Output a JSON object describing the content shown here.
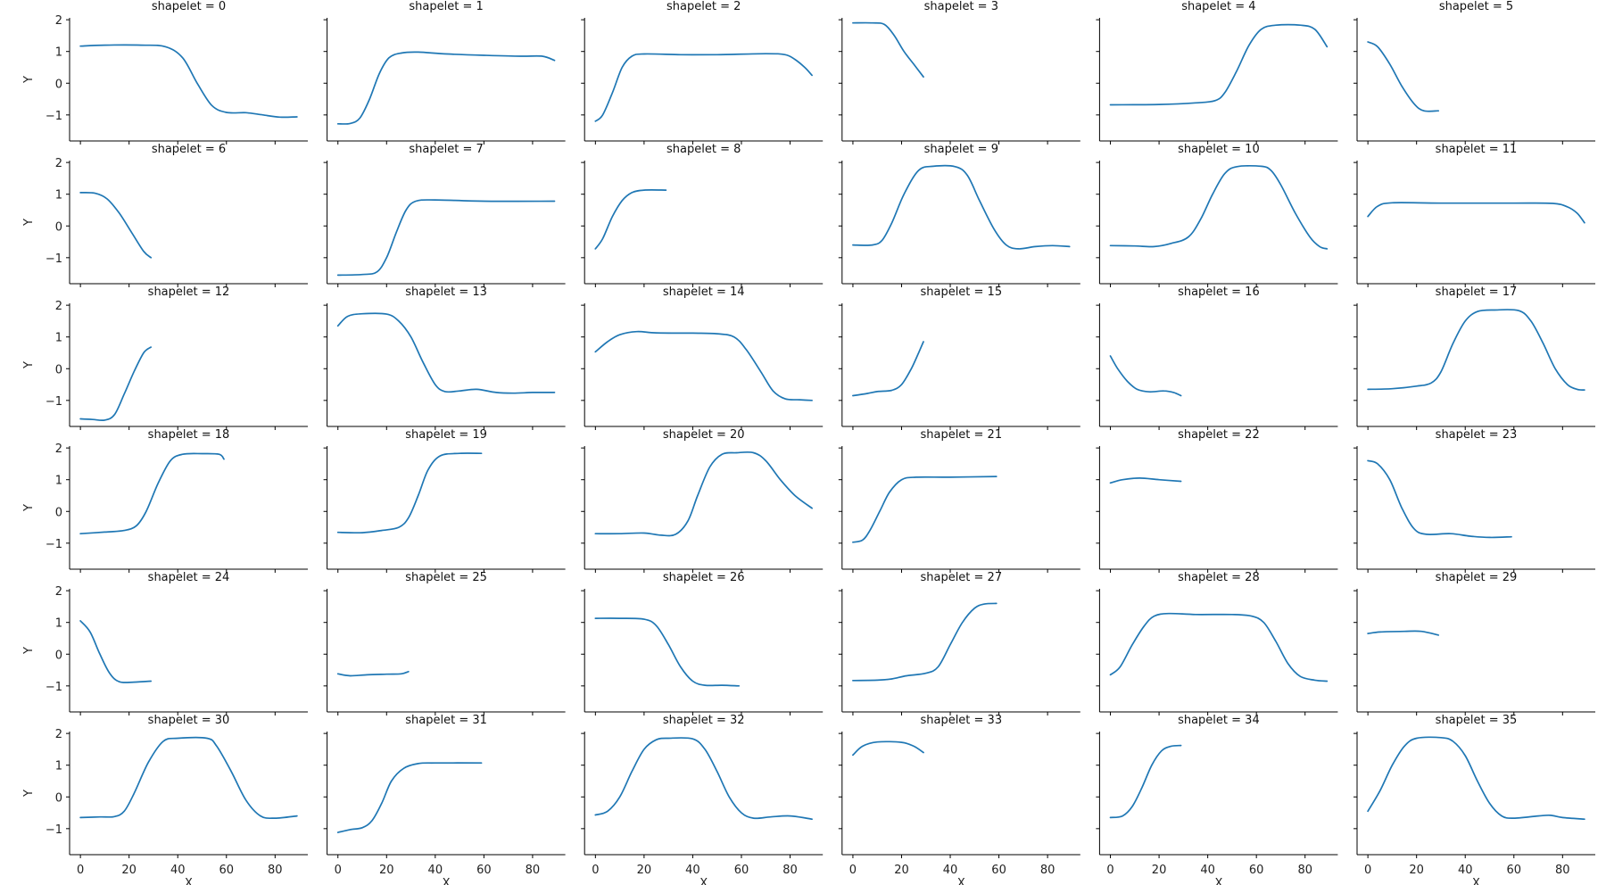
{
  "chart_data": {
    "type": "line",
    "layout": "facet grid, 6 columns x 6 rows, shared axes",
    "xlabel": "X",
    "ylabel": "Y",
    "xlim": [
      -4.45,
      93.45
    ],
    "ylim": [
      -1.82,
      2.06
    ],
    "xticks": [
      0,
      20,
      40,
      60,
      80
    ],
    "xtick_labels": [
      "0",
      "20",
      "40",
      "60",
      "80"
    ],
    "yticks": [
      -1,
      0,
      1,
      2
    ],
    "ytick_labels": [
      "−1",
      "0",
      "1",
      "2"
    ],
    "grid": false,
    "line_color": "#1f77b4",
    "panels": [
      {
        "title": "shapelet = 0",
        "x": [
          0,
          10,
          25,
          35,
          42,
          48,
          54,
          60,
          68,
          75,
          82,
          89
        ],
        "y": [
          1.17,
          1.2,
          1.2,
          1.15,
          0.8,
          0,
          -0.7,
          -0.92,
          -0.93,
          -1.0,
          -1.07,
          -1.06
        ]
      },
      {
        "title": "shapelet = 1",
        "x": [
          0,
          5,
          9,
          13,
          17,
          21,
          26,
          33,
          45,
          60,
          75,
          84,
          89
        ],
        "y": [
          -1.28,
          -1.27,
          -1.1,
          -0.5,
          0.3,
          0.8,
          0.95,
          0.98,
          0.92,
          0.88,
          0.85,
          0.85,
          0.72
        ]
      },
      {
        "title": "shapelet = 2",
        "x": [
          0,
          3,
          7,
          11,
          15,
          20,
          35,
          50,
          70,
          78,
          82,
          86,
          89
        ],
        "y": [
          -1.2,
          -1.0,
          -0.3,
          0.5,
          0.85,
          0.92,
          0.9,
          0.9,
          0.93,
          0.9,
          0.75,
          0.5,
          0.25
        ]
      },
      {
        "title": "shapelet = 3",
        "x": [
          0,
          8,
          13,
          17,
          21,
          25,
          29
        ],
        "y": [
          1.9,
          1.9,
          1.85,
          1.5,
          1.0,
          0.6,
          0.2
        ]
      },
      {
        "title": "shapelet = 4",
        "x": [
          0,
          20,
          35,
          43,
          47,
          52,
          57,
          62,
          68,
          78,
          84,
          89
        ],
        "y": [
          -0.68,
          -0.67,
          -0.62,
          -0.55,
          -0.3,
          0.4,
          1.2,
          1.7,
          1.83,
          1.83,
          1.7,
          1.15
        ]
      },
      {
        "title": "shapelet = 5",
        "x": [
          0,
          4,
          9,
          14,
          19,
          23,
          29
        ],
        "y": [
          1.3,
          1.15,
          0.6,
          -0.1,
          -0.65,
          -0.87,
          -0.87
        ]
      },
      {
        "title": "shapelet = 6",
        "x": [
          0,
          6,
          11,
          16,
          21,
          26,
          29
        ],
        "y": [
          1.05,
          1.03,
          0.85,
          0.4,
          -0.2,
          -0.8,
          -1.0
        ]
      },
      {
        "title": "shapelet = 7",
        "x": [
          0,
          10,
          16,
          20,
          24,
          28,
          32,
          40,
          60,
          89
        ],
        "y": [
          -1.55,
          -1.53,
          -1.45,
          -1.0,
          -0.2,
          0.5,
          0.78,
          0.82,
          0.78,
          0.78
        ]
      },
      {
        "title": "shapelet = 8",
        "x": [
          0,
          3,
          7,
          11,
          15,
          20,
          29
        ],
        "y": [
          -0.72,
          -0.4,
          0.3,
          0.8,
          1.05,
          1.13,
          1.13
        ]
      },
      {
        "title": "shapelet = 9",
        "x": [
          0,
          8,
          12,
          16,
          21,
          27,
          33,
          42,
          47,
          52,
          58,
          63,
          68,
          75,
          82,
          89
        ],
        "y": [
          -0.6,
          -0.6,
          -0.45,
          0.1,
          1.0,
          1.75,
          1.88,
          1.87,
          1.6,
          0.8,
          -0.1,
          -0.6,
          -0.72,
          -0.65,
          -0.62,
          -0.65
        ]
      },
      {
        "title": "shapelet = 10",
        "x": [
          0,
          10,
          18,
          25,
          32,
          37,
          42,
          47,
          52,
          62,
          66,
          70,
          76,
          82,
          86,
          89
        ],
        "y": [
          -0.62,
          -0.63,
          -0.65,
          -0.55,
          -0.35,
          0.2,
          1.0,
          1.65,
          1.87,
          1.88,
          1.75,
          1.3,
          0.4,
          -0.35,
          -0.65,
          -0.72
        ]
      },
      {
        "title": "shapelet = 11",
        "x": [
          0,
          4,
          10,
          30,
          60,
          76,
          82,
          86,
          89
        ],
        "y": [
          0.3,
          0.62,
          0.73,
          0.72,
          0.72,
          0.71,
          0.6,
          0.4,
          0.1
        ]
      },
      {
        "title": "shapelet = 12",
        "x": [
          0,
          5,
          10,
          14,
          18,
          22,
          26,
          29
        ],
        "y": [
          -1.58,
          -1.6,
          -1.62,
          -1.45,
          -0.8,
          -0.1,
          0.5,
          0.68
        ]
      },
      {
        "title": "shapelet = 13",
        "x": [
          0,
          4,
          10,
          20,
          25,
          30,
          35,
          40,
          44,
          50,
          57,
          65,
          72,
          80,
          89
        ],
        "y": [
          1.35,
          1.65,
          1.73,
          1.72,
          1.5,
          1.0,
          0.2,
          -0.5,
          -0.72,
          -0.7,
          -0.65,
          -0.75,
          -0.77,
          -0.75,
          -0.75
        ]
      },
      {
        "title": "shapelet = 14",
        "x": [
          0,
          5,
          10,
          17,
          25,
          40,
          50,
          57,
          62,
          68,
          73,
          78,
          84,
          89
        ],
        "y": [
          0.53,
          0.85,
          1.07,
          1.17,
          1.13,
          1.12,
          1.1,
          1.0,
          0.6,
          -0.1,
          -0.7,
          -0.95,
          -0.98,
          -1.0
        ]
      },
      {
        "title": "shapelet = 15",
        "x": [
          0,
          6,
          10,
          16,
          20,
          24,
          27,
          29
        ],
        "y": [
          -0.85,
          -0.78,
          -0.72,
          -0.68,
          -0.5,
          0.0,
          0.5,
          0.85
        ]
      },
      {
        "title": "shapelet = 16",
        "x": [
          0,
          3,
          7,
          11,
          16,
          22,
          26,
          29
        ],
        "y": [
          0.4,
          0.0,
          -0.4,
          -0.65,
          -0.73,
          -0.7,
          -0.75,
          -0.85
        ]
      },
      {
        "title": "shapelet = 17",
        "x": [
          0,
          10,
          20,
          26,
          30,
          35,
          40,
          45,
          52,
          62,
          67,
          72,
          77,
          82,
          86,
          89
        ],
        "y": [
          -0.65,
          -0.63,
          -0.55,
          -0.45,
          -0.1,
          0.8,
          1.5,
          1.8,
          1.85,
          1.83,
          1.5,
          0.8,
          0.0,
          -0.5,
          -0.65,
          -0.67
        ]
      },
      {
        "title": "shapelet = 18",
        "x": [
          0,
          10,
          18,
          23,
          27,
          32,
          37,
          42,
          50,
          57,
          59
        ],
        "y": [
          -0.7,
          -0.65,
          -0.6,
          -0.45,
          0.0,
          0.9,
          1.6,
          1.8,
          1.82,
          1.8,
          1.65
        ]
      },
      {
        "title": "shapelet = 19",
        "x": [
          0,
          10,
          18,
          25,
          29,
          33,
          37,
          42,
          50,
          59
        ],
        "y": [
          -0.66,
          -0.67,
          -0.6,
          -0.5,
          -0.2,
          0.5,
          1.3,
          1.75,
          1.83,
          1.83
        ]
      },
      {
        "title": "shapelet = 20",
        "x": [
          0,
          10,
          20,
          27,
          33,
          38,
          42,
          47,
          52,
          58,
          65,
          70,
          76,
          82,
          89
        ],
        "y": [
          -0.7,
          -0.7,
          -0.68,
          -0.75,
          -0.72,
          -0.3,
          0.5,
          1.4,
          1.8,
          1.85,
          1.85,
          1.6,
          1.0,
          0.5,
          0.1
        ]
      },
      {
        "title": "shapelet = 21",
        "x": [
          0,
          4,
          7,
          11,
          15,
          20,
          26,
          40,
          59
        ],
        "y": [
          -0.97,
          -0.9,
          -0.6,
          0.0,
          0.6,
          1.0,
          1.08,
          1.08,
          1.1
        ]
      },
      {
        "title": "shapelet = 22",
        "x": [
          0,
          5,
          12,
          20,
          29
        ],
        "y": [
          0.9,
          1.0,
          1.05,
          1.0,
          0.95
        ]
      },
      {
        "title": "shapelet = 23",
        "x": [
          0,
          4,
          9,
          14,
          19,
          24,
          34,
          42,
          50,
          59
        ],
        "y": [
          1.6,
          1.5,
          1.0,
          0.1,
          -0.55,
          -0.72,
          -0.7,
          -0.78,
          -0.82,
          -0.8
        ]
      },
      {
        "title": "shapelet = 24",
        "x": [
          0,
          4,
          8,
          12,
          16,
          22,
          29
        ],
        "y": [
          1.05,
          0.7,
          0.0,
          -0.6,
          -0.87,
          -0.88,
          -0.85
        ]
      },
      {
        "title": "shapelet = 25",
        "x": [
          0,
          5,
          12,
          20,
          26,
          29
        ],
        "y": [
          -0.62,
          -0.68,
          -0.65,
          -0.63,
          -0.62,
          -0.55
        ]
      },
      {
        "title": "shapelet = 26",
        "x": [
          0,
          10,
          20,
          25,
          30,
          35,
          40,
          45,
          52,
          59
        ],
        "y": [
          1.13,
          1.13,
          1.1,
          0.9,
          0.3,
          -0.4,
          -0.85,
          -0.98,
          -0.98,
          -1.0
        ]
      },
      {
        "title": "shapelet = 27",
        "x": [
          0,
          10,
          16,
          22,
          30,
          35,
          40,
          45,
          50,
          54,
          59
        ],
        "y": [
          -0.83,
          -0.82,
          -0.78,
          -0.68,
          -0.6,
          -0.4,
          0.3,
          1.0,
          1.45,
          1.58,
          1.6
        ]
      },
      {
        "title": "shapelet = 28",
        "x": [
          0,
          4,
          9,
          14,
          18,
          24,
          35,
          50,
          58,
          63,
          68,
          73,
          78,
          84,
          89
        ],
        "y": [
          -0.65,
          -0.4,
          0.3,
          0.9,
          1.2,
          1.28,
          1.25,
          1.25,
          1.2,
          1.0,
          0.4,
          -0.3,
          -0.7,
          -0.82,
          -0.85
        ]
      },
      {
        "title": "shapelet = 29",
        "x": [
          0,
          5,
          15,
          22,
          29
        ],
        "y": [
          0.65,
          0.7,
          0.72,
          0.72,
          0.6
        ]
      },
      {
        "title": "shapelet = 30",
        "x": [
          0,
          8,
          14,
          18,
          22,
          28,
          34,
          40,
          52,
          56,
          62,
          68,
          74,
          80,
          89
        ],
        "y": [
          -0.65,
          -0.63,
          -0.62,
          -0.45,
          0.1,
          1.1,
          1.75,
          1.85,
          1.85,
          1.6,
          0.8,
          -0.1,
          -0.6,
          -0.67,
          -0.6
        ]
      },
      {
        "title": "shapelet = 31",
        "x": [
          0,
          5,
          10,
          14,
          18,
          22,
          27,
          33,
          40,
          59
        ],
        "y": [
          -1.12,
          -1.03,
          -0.97,
          -0.75,
          -0.2,
          0.5,
          0.9,
          1.05,
          1.07,
          1.07
        ]
      },
      {
        "title": "shapelet = 32",
        "x": [
          0,
          5,
          10,
          15,
          20,
          25,
          30,
          40,
          45,
          50,
          55,
          60,
          65,
          72,
          80,
          89
        ],
        "y": [
          -0.57,
          -0.45,
          0.0,
          0.8,
          1.5,
          1.8,
          1.85,
          1.83,
          1.5,
          0.8,
          0.0,
          -0.5,
          -0.67,
          -0.63,
          -0.6,
          -0.7
        ]
      },
      {
        "title": "shapelet = 33",
        "x": [
          0,
          4,
          10,
          20,
          25,
          29
        ],
        "y": [
          1.32,
          1.6,
          1.73,
          1.72,
          1.6,
          1.4
        ]
      },
      {
        "title": "shapelet = 34",
        "x": [
          0,
          5,
          9,
          13,
          17,
          21,
          25,
          29
        ],
        "y": [
          -0.65,
          -0.6,
          -0.3,
          0.3,
          1.0,
          1.45,
          1.6,
          1.62
        ]
      },
      {
        "title": "shapelet = 35",
        "x": [
          0,
          5,
          10,
          15,
          20,
          30,
          35,
          40,
          45,
          50,
          55,
          60,
          70,
          75,
          80,
          89
        ],
        "y": [
          -0.45,
          0.2,
          1.0,
          1.6,
          1.85,
          1.87,
          1.75,
          1.3,
          0.5,
          -0.2,
          -0.6,
          -0.67,
          -0.6,
          -0.58,
          -0.65,
          -0.7
        ]
      }
    ]
  }
}
